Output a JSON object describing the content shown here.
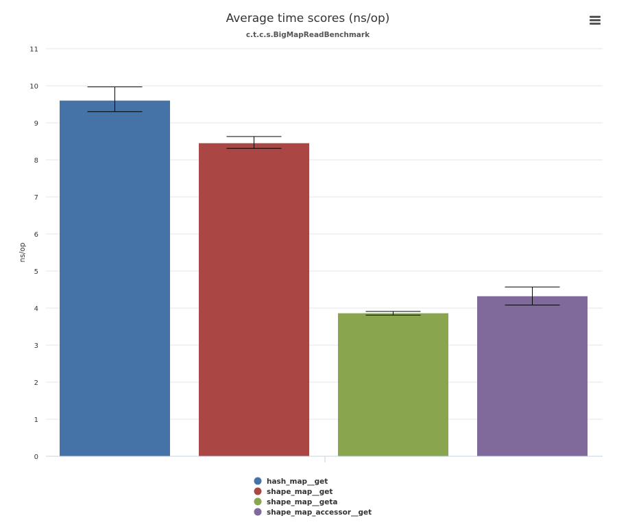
{
  "chart_data": {
    "type": "bar",
    "title": "Average time scores (ns/op)",
    "subtitle": "c.t.c.s.BigMapReadBenchmark",
    "xlabel": "",
    "ylabel": "ns/op",
    "ylim": [
      0,
      11
    ],
    "yticks": [
      0,
      1,
      2,
      3,
      4,
      5,
      6,
      7,
      8,
      9,
      10,
      11
    ],
    "grid": true,
    "legend_position": "bottom",
    "series": [
      {
        "name": "hash_map__get",
        "value": 9.6,
        "error_low": 9.3,
        "error_high": 9.97,
        "color": "#4572a7"
      },
      {
        "name": "shape_map__get",
        "value": 8.45,
        "error_low": 8.31,
        "error_high": 8.63,
        "color": "#aa4643"
      },
      {
        "name": "shape_map__geta",
        "value": 3.86,
        "error_low": 3.81,
        "error_high": 3.91,
        "color": "#89a54e"
      },
      {
        "name": "shape_map_accessor__get",
        "value": 4.32,
        "error_low": 4.08,
        "error_high": 4.57,
        "color": "#80699b"
      }
    ]
  },
  "menu": {
    "icon": "hamburger-menu-icon"
  }
}
